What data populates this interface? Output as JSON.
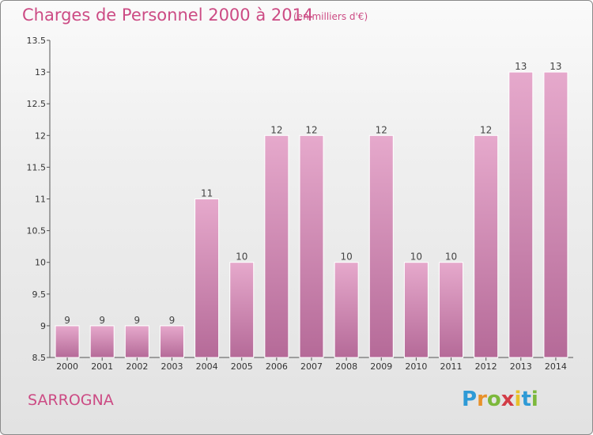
{
  "title": "Charges de Personnel 2000 à 2014",
  "unit": "(en milliers d'€)",
  "commune": "SARROGNA",
  "brand": {
    "letters": [
      "P",
      "r",
      "o",
      "x",
      "i",
      "t",
      "i"
    ],
    "colors": [
      "#2e9ad6",
      "#e8912a",
      "#7cb83b",
      "#d23c46",
      "#e8c12a",
      "#2e9ad6",
      "#7cb83b"
    ]
  },
  "colors": {
    "accent": "#cc4b84",
    "bar_top": "#e6a9cc",
    "bar_bottom": "#b56a98"
  },
  "chart_data": {
    "type": "bar",
    "title": "Charges de Personnel 2000 à 2014",
    "xlabel": "",
    "ylabel": "",
    "categories": [
      "2000",
      "2001",
      "2002",
      "2003",
      "2004",
      "2005",
      "2006",
      "2007",
      "2008",
      "2009",
      "2010",
      "2011",
      "2012",
      "2013",
      "2014"
    ],
    "values": [
      9,
      9,
      9,
      9,
      11,
      10,
      12,
      12,
      10,
      12,
      10,
      10,
      12,
      13,
      13
    ],
    "value_labels": [
      "9",
      "9",
      "9",
      "9",
      "11",
      "10",
      "12",
      "12",
      "10",
      "12",
      "10",
      "10",
      "12",
      "13",
      "13"
    ],
    "ylim": [
      8.5,
      13.5
    ],
    "yticks": [
      8.5,
      9,
      9.5,
      10,
      10.5,
      11,
      11.5,
      12,
      12.5,
      13,
      13.5
    ],
    "ytick_labels": [
      "8.5",
      "9",
      "9.5",
      "10",
      "10.5",
      "11",
      "11.5",
      "12",
      "12.5",
      "13",
      "13.5"
    ],
    "grid": false,
    "legend": "none"
  }
}
